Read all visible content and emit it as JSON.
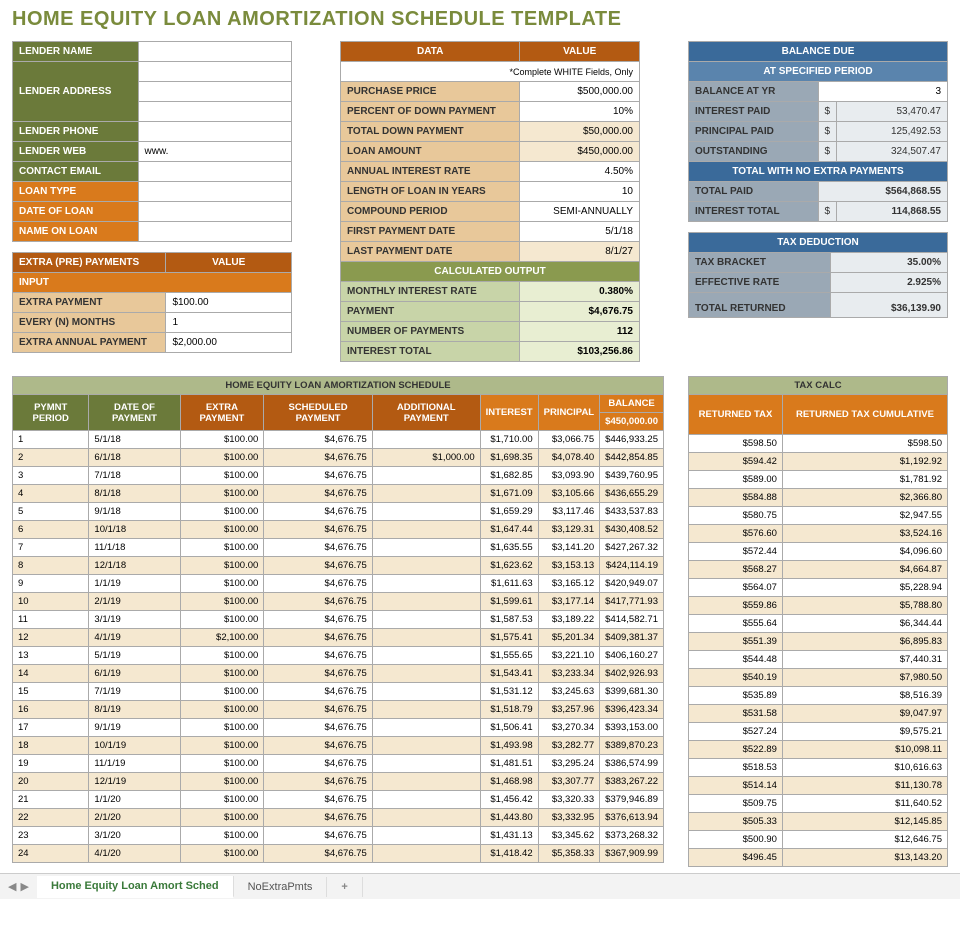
{
  "title": "HOME EQUITY LOAN AMORTIZATION SCHEDULE TEMPLATE",
  "lender": {
    "rows": [
      {
        "label": "LENDER NAME",
        "value": "",
        "cls": "hdr-olive"
      },
      {
        "label": "LENDER ADDRESS",
        "value": "",
        "cls": "hdr-olive",
        "rowspan": 3
      },
      {
        "label": "LENDER PHONE",
        "value": "",
        "cls": "hdr-olive"
      },
      {
        "label": "LENDER WEB",
        "value": "www.",
        "cls": "hdr-olive"
      },
      {
        "label": "CONTACT EMAIL",
        "value": "",
        "cls": "hdr-olive"
      },
      {
        "label": "LOAN TYPE",
        "value": "",
        "cls": "hdr-orange"
      },
      {
        "label": "DATE OF LOAN",
        "value": "",
        "cls": "hdr-orange"
      },
      {
        "label": "NAME ON LOAN",
        "value": "",
        "cls": "hdr-orange"
      }
    ]
  },
  "extra": {
    "title_l": "EXTRA (PRE) PAYMENTS",
    "title_r": "VALUE",
    "input": "INPUT",
    "rows": [
      {
        "label": "EXTRA PAYMENT",
        "value": "$100.00"
      },
      {
        "label": "EVERY (N) MONTHS",
        "value": "1"
      },
      {
        "label": "EXTRA ANNUAL PAYMENT",
        "value": "$2,000.00"
      }
    ]
  },
  "data": {
    "h1": "DATA",
    "h2": "VALUE",
    "note": "*Complete WHITE Fields, Only",
    "rows": [
      {
        "label": "PURCHASE PRICE",
        "value": "$500,000.00",
        "white": true
      },
      {
        "label": "PERCENT OF DOWN PAYMENT",
        "value": "10%",
        "white": true
      },
      {
        "label": "TOTAL DOWN PAYMENT",
        "value": "$50,000.00"
      },
      {
        "label": "LOAN AMOUNT",
        "value": "$450,000.00"
      },
      {
        "label": "ANNUAL INTEREST RATE",
        "value": "4.50%",
        "white": true
      },
      {
        "label": "LENGTH OF LOAN IN YEARS",
        "value": "10",
        "white": true
      },
      {
        "label": "COMPOUND PERIOD",
        "value": "SEMI-ANNUALLY",
        "white": true
      },
      {
        "label": "FIRST PAYMENT DATE",
        "value": "5/1/18",
        "white": true
      },
      {
        "label": "LAST PAYMENT DATE",
        "value": "8/1/27"
      }
    ],
    "calc_title": "CALCULATED OUTPUT",
    "calc": [
      {
        "label": "MONTHLY INTEREST RATE",
        "value": "0.380%"
      },
      {
        "label": "PAYMENT",
        "value": "$4,676.75"
      },
      {
        "label": "NUMBER OF PAYMENTS",
        "value": "112"
      },
      {
        "label": "INTEREST TOTAL",
        "value": "$103,256.86"
      }
    ]
  },
  "balance": {
    "h": "BALANCE DUE",
    "sub": "AT SPECIFIED PERIOD",
    "rows": [
      {
        "label": "BALANCE AT YR",
        "value": "3",
        "white": true
      },
      {
        "label": "INTEREST PAID",
        "prefix": "$",
        "value": "53,470.47"
      },
      {
        "label": "PRINCIPAL PAID",
        "prefix": "$",
        "value": "125,492.53"
      },
      {
        "label": "OUTSTANDING",
        "prefix": "$",
        "value": "324,507.47"
      }
    ],
    "total_h": "TOTAL WITH NO EXTRA PAYMENTS",
    "totals": [
      {
        "label": "TOTAL PAID",
        "value": "$564,868.55"
      },
      {
        "label": "INTEREST TOTAL",
        "prefix": "$",
        "value": "114,868.55"
      }
    ]
  },
  "tax": {
    "h": "TAX DEDUCTION",
    "rows": [
      {
        "label": "TAX BRACKET",
        "value": "35.00%"
      },
      {
        "label": "EFFECTIVE RATE",
        "value": "2.925%"
      },
      {
        "label": "TOTAL RETURNED",
        "value": "$36,139.90",
        "spacer": true
      }
    ]
  },
  "sched": {
    "title": "HOME EQUITY LOAN AMORTIZATION SCHEDULE",
    "cols": [
      "PYMNT PERIOD",
      "DATE OF PAYMENT",
      "EXTRA PAYMENT",
      "SCHEDULED PAYMENT",
      "ADDITIONAL PAYMENT",
      "INTEREST",
      "PRINCIPAL",
      "BALANCE"
    ],
    "balance_start": "$450,000.00",
    "rows": [
      [
        "1",
        "5/1/18",
        "$100.00",
        "$4,676.75",
        "",
        "$1,710.00",
        "$3,066.75",
        "$446,933.25"
      ],
      [
        "2",
        "6/1/18",
        "$100.00",
        "$4,676.75",
        "$1,000.00",
        "$1,698.35",
        "$4,078.40",
        "$442,854.85"
      ],
      [
        "3",
        "7/1/18",
        "$100.00",
        "$4,676.75",
        "",
        "$1,682.85",
        "$3,093.90",
        "$439,760.95"
      ],
      [
        "4",
        "8/1/18",
        "$100.00",
        "$4,676.75",
        "",
        "$1,671.09",
        "$3,105.66",
        "$436,655.29"
      ],
      [
        "5",
        "9/1/18",
        "$100.00",
        "$4,676.75",
        "",
        "$1,659.29",
        "$3,117.46",
        "$433,537.83"
      ],
      [
        "6",
        "10/1/18",
        "$100.00",
        "$4,676.75",
        "",
        "$1,647.44",
        "$3,129.31",
        "$430,408.52"
      ],
      [
        "7",
        "11/1/18",
        "$100.00",
        "$4,676.75",
        "",
        "$1,635.55",
        "$3,141.20",
        "$427,267.32"
      ],
      [
        "8",
        "12/1/18",
        "$100.00",
        "$4,676.75",
        "",
        "$1,623.62",
        "$3,153.13",
        "$424,114.19"
      ],
      [
        "9",
        "1/1/19",
        "$100.00",
        "$4,676.75",
        "",
        "$1,611.63",
        "$3,165.12",
        "$420,949.07"
      ],
      [
        "10",
        "2/1/19",
        "$100.00",
        "$4,676.75",
        "",
        "$1,599.61",
        "$3,177.14",
        "$417,771.93"
      ],
      [
        "11",
        "3/1/19",
        "$100.00",
        "$4,676.75",
        "",
        "$1,587.53",
        "$3,189.22",
        "$414,582.71"
      ],
      [
        "12",
        "4/1/19",
        "$2,100.00",
        "$4,676.75",
        "",
        "$1,575.41",
        "$5,201.34",
        "$409,381.37"
      ],
      [
        "13",
        "5/1/19",
        "$100.00",
        "$4,676.75",
        "",
        "$1,555.65",
        "$3,221.10",
        "$406,160.27"
      ],
      [
        "14",
        "6/1/19",
        "$100.00",
        "$4,676.75",
        "",
        "$1,543.41",
        "$3,233.34",
        "$402,926.93"
      ],
      [
        "15",
        "7/1/19",
        "$100.00",
        "$4,676.75",
        "",
        "$1,531.12",
        "$3,245.63",
        "$399,681.30"
      ],
      [
        "16",
        "8/1/19",
        "$100.00",
        "$4,676.75",
        "",
        "$1,518.79",
        "$3,257.96",
        "$396,423.34"
      ],
      [
        "17",
        "9/1/19",
        "$100.00",
        "$4,676.75",
        "",
        "$1,506.41",
        "$3,270.34",
        "$393,153.00"
      ],
      [
        "18",
        "10/1/19",
        "$100.00",
        "$4,676.75",
        "",
        "$1,493.98",
        "$3,282.77",
        "$389,870.23"
      ],
      [
        "19",
        "11/1/19",
        "$100.00",
        "$4,676.75",
        "",
        "$1,481.51",
        "$3,295.24",
        "$386,574.99"
      ],
      [
        "20",
        "12/1/19",
        "$100.00",
        "$4,676.75",
        "",
        "$1,468.98",
        "$3,307.77",
        "$383,267.22"
      ],
      [
        "21",
        "1/1/20",
        "$100.00",
        "$4,676.75",
        "",
        "$1,456.42",
        "$3,320.33",
        "$379,946.89"
      ],
      [
        "22",
        "2/1/20",
        "$100.00",
        "$4,676.75",
        "",
        "$1,443.80",
        "$3,332.95",
        "$376,613.94"
      ],
      [
        "23",
        "3/1/20",
        "$100.00",
        "$4,676.75",
        "",
        "$1,431.13",
        "$3,345.62",
        "$373,268.32"
      ],
      [
        "24",
        "4/1/20",
        "$100.00",
        "$4,676.75",
        "",
        "$1,418.42",
        "$5,358.33",
        "$367,909.99"
      ]
    ]
  },
  "taxcalc": {
    "title": "TAX CALC",
    "cols": [
      "RETURNED TAX",
      "RETURNED TAX CUMULATIVE"
    ],
    "rows": [
      [
        "$598.50",
        "$598.50"
      ],
      [
        "$594.42",
        "$1,192.92"
      ],
      [
        "$589.00",
        "$1,781.92"
      ],
      [
        "$584.88",
        "$2,366.80"
      ],
      [
        "$580.75",
        "$2,947.55"
      ],
      [
        "$576.60",
        "$3,524.16"
      ],
      [
        "$572.44",
        "$4,096.60"
      ],
      [
        "$568.27",
        "$4,664.87"
      ],
      [
        "$564.07",
        "$5,228.94"
      ],
      [
        "$559.86",
        "$5,788.80"
      ],
      [
        "$555.64",
        "$6,344.44"
      ],
      [
        "$551.39",
        "$6,895.83"
      ],
      [
        "$544.48",
        "$7,440.31"
      ],
      [
        "$540.19",
        "$7,980.50"
      ],
      [
        "$535.89",
        "$8,516.39"
      ],
      [
        "$531.58",
        "$9,047.97"
      ],
      [
        "$527.24",
        "$9,575.21"
      ],
      [
        "$522.89",
        "$10,098.11"
      ],
      [
        "$518.53",
        "$10,616.63"
      ],
      [
        "$514.14",
        "$11,130.78"
      ],
      [
        "$509.75",
        "$11,640.52"
      ],
      [
        "$505.33",
        "$12,145.85"
      ],
      [
        "$500.90",
        "$12,646.75"
      ],
      [
        "$496.45",
        "$13,143.20"
      ]
    ]
  },
  "tabs": {
    "active": "Home Equity Loan Amort Sched",
    "other": "NoExtraPmts"
  }
}
